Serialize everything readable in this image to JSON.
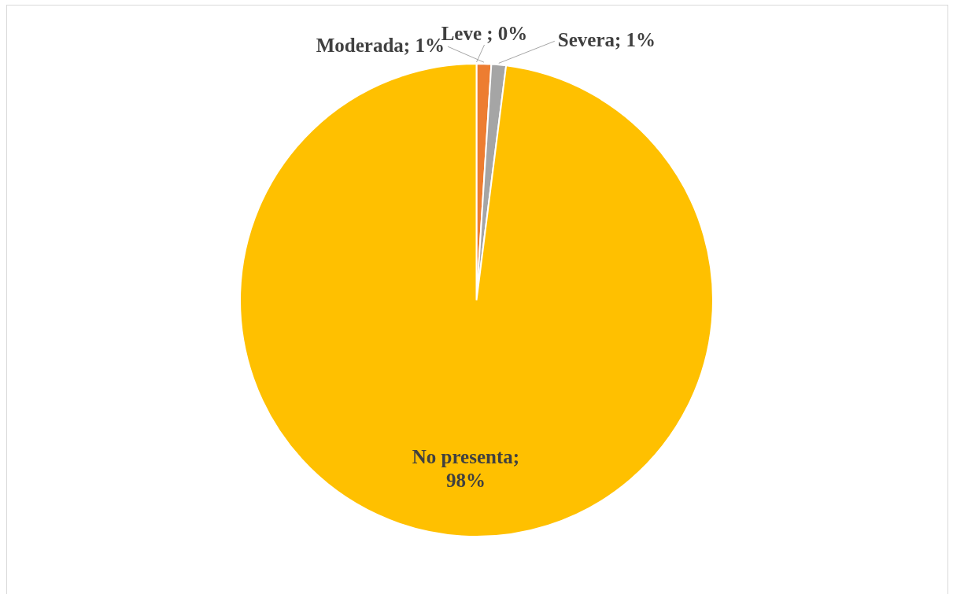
{
  "chart_data": {
    "type": "pie",
    "categories": [
      "Leve",
      "Moderada",
      "Severa",
      "No presenta"
    ],
    "values": [
      0,
      1,
      1,
      98
    ],
    "colors": [
      "#4472c4",
      "#ed7d31",
      "#a5a5a5",
      "#ffc000"
    ],
    "value_labels": [
      " ; 0%",
      "; 1%",
      "; 1%",
      "; 98%"
    ],
    "legend": false
  }
}
